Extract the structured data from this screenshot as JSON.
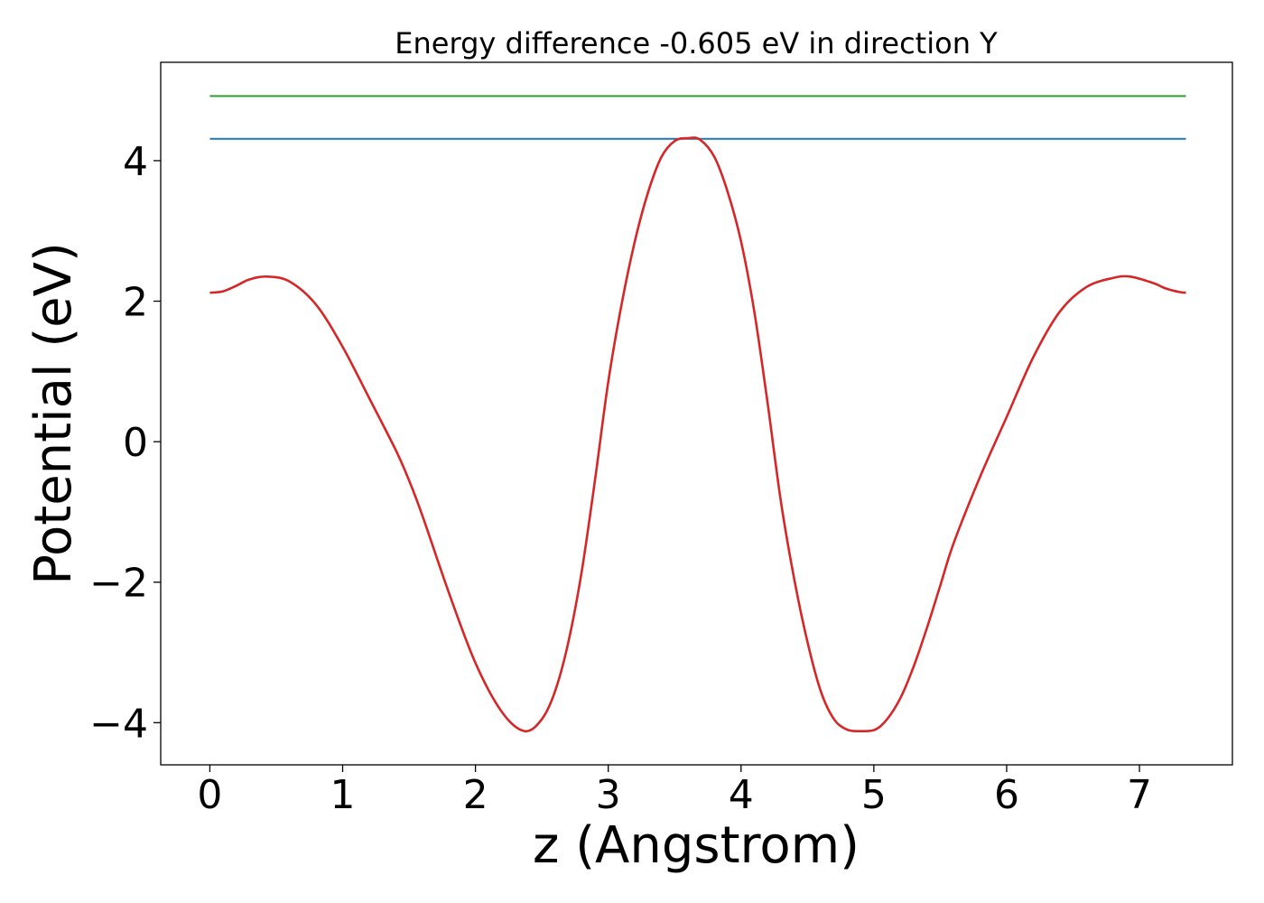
{
  "chart_data": {
    "type": "line",
    "title": "Energy difference -0.605 eV in direction Y",
    "xlabel": "z (Angstrom)",
    "ylabel": "Potential (eV)",
    "xlim": [
      -0.37,
      7.7
    ],
    "ylim": [
      -4.6,
      5.4
    ],
    "x_ticks": [
      0,
      1,
      2,
      3,
      4,
      5,
      6,
      7
    ],
    "x_tick_labels": [
      "0",
      "1",
      "2",
      "3",
      "4",
      "5",
      "6",
      "7"
    ],
    "y_ticks": [
      -4,
      -2,
      0,
      2,
      4
    ],
    "y_tick_labels": [
      "−4",
      "−2",
      "0",
      "2",
      "4"
    ],
    "grid": false,
    "legend": false,
    "series": [
      {
        "color": "#d62728",
        "x": [
          0.0,
          0.1,
          0.2,
          0.3,
          0.43,
          0.6,
          0.8,
          1.0,
          1.2,
          1.4,
          1.5,
          1.6,
          1.8,
          2.0,
          2.2,
          2.37,
          2.5,
          2.6,
          2.7,
          2.8,
          2.9,
          3.0,
          3.1,
          3.2,
          3.3,
          3.4,
          3.5,
          3.6,
          3.69,
          3.8,
          3.9,
          4.0,
          4.1,
          4.2,
          4.3,
          4.4,
          4.5,
          4.6,
          4.7,
          4.8,
          4.9,
          5.01,
          5.1,
          5.2,
          5.3,
          5.4,
          5.5,
          5.6,
          5.8,
          6.0,
          6.2,
          6.4,
          6.6,
          6.8,
          6.93,
          7.1,
          7.2,
          7.3,
          7.35
        ],
        "values": [
          2.12,
          2.14,
          2.22,
          2.31,
          2.35,
          2.28,
          1.95,
          1.35,
          0.62,
          -0.12,
          -0.55,
          -1.05,
          -2.15,
          -3.15,
          -3.85,
          -4.12,
          -3.95,
          -3.55,
          -2.85,
          -1.85,
          -0.55,
          0.85,
          1.95,
          2.85,
          3.55,
          4.05,
          4.28,
          4.32,
          4.3,
          4.05,
          3.55,
          2.85,
          1.85,
          0.55,
          -0.85,
          -1.95,
          -2.85,
          -3.55,
          -3.95,
          -4.1,
          -4.12,
          -4.1,
          -3.95,
          -3.65,
          -3.2,
          -2.65,
          -2.05,
          -1.45,
          -0.5,
          0.35,
          1.2,
          1.85,
          2.2,
          2.33,
          2.35,
          2.26,
          2.18,
          2.13,
          2.12
        ]
      },
      {
        "color": "#1f77b4",
        "x": [
          0.0,
          7.35
        ],
        "values": [
          4.31,
          4.31
        ]
      },
      {
        "color": "#2ca02c",
        "x": [
          0.0,
          7.35
        ],
        "values": [
          4.92,
          4.92
        ]
      }
    ]
  }
}
